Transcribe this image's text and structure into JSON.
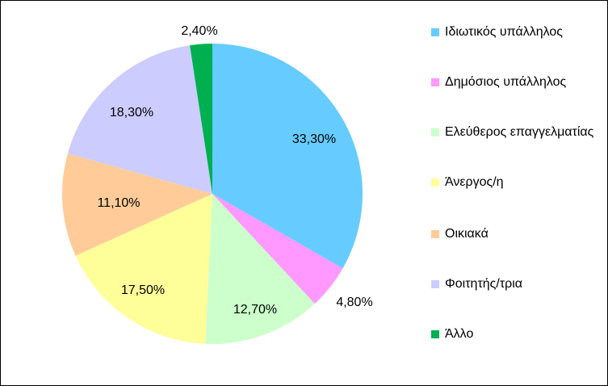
{
  "chart_data": {
    "type": "pie",
    "title": "",
    "categories": [
      "Ιδιωτικός υπάλληλος",
      "Δημόσιος υπάλληλος",
      "Ελεύθερος επαγγελματίας",
      "Άνεργος/η",
      "Οικιακά",
      "Φοιτητής/τρια",
      "Άλλο"
    ],
    "values": [
      33.3,
      4.8,
      12.7,
      17.5,
      11.1,
      18.3,
      2.4
    ],
    "data_labels": [
      "33,30%",
      "4,80%",
      "12,70%",
      "17,50%",
      "11,10%",
      "18,30%",
      "2,40%"
    ],
    "colors": [
      "#66CCFF",
      "#FF99FF",
      "#CCFFCC",
      "#FFFF99",
      "#FFCC99",
      "#CCCCFF",
      "#00B050"
    ],
    "start": "12 o'clock",
    "direction": "clockwise",
    "legend_position": "right"
  },
  "legend": {
    "items": [
      {
        "label": "Ιδιωτικός υπάλληλος"
      },
      {
        "label": "Δημόσιος υπάλληλος"
      },
      {
        "label": "Ελεύθερος επαγγελματίας"
      },
      {
        "label": "Άνεργος/η"
      },
      {
        "label": "Οικιακά"
      },
      {
        "label": "Φοιτητής/τρια"
      },
      {
        "label": "Άλλο"
      }
    ]
  }
}
